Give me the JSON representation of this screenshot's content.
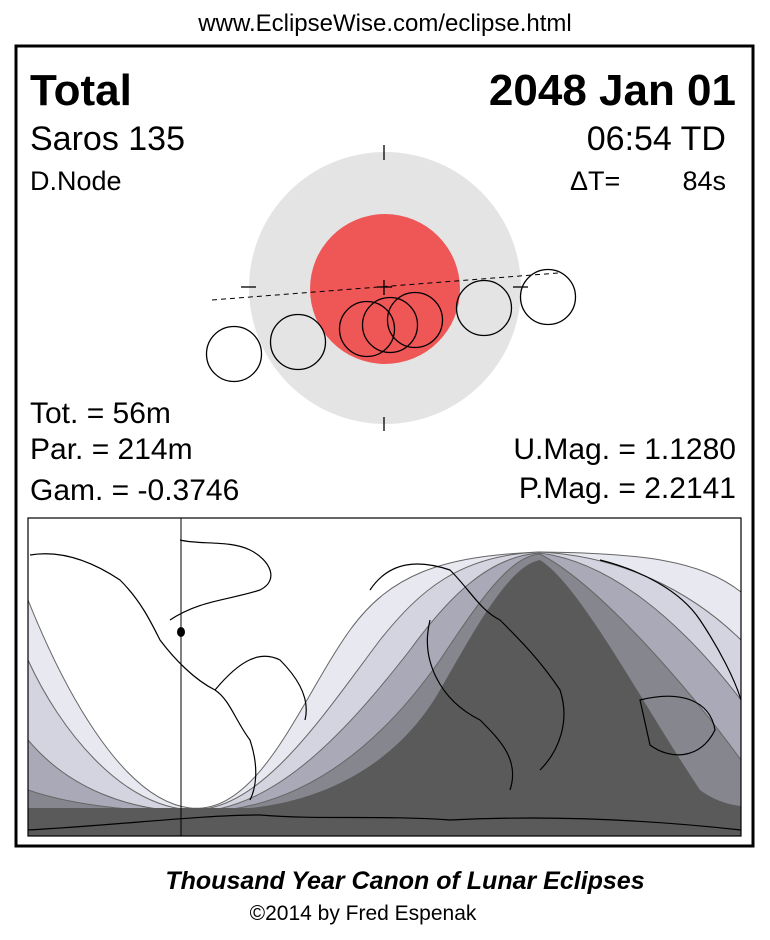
{
  "header": {
    "url": "www.EclipseWise.com/eclipse.html"
  },
  "eclipse": {
    "type": "Total",
    "date": "2048 Jan 01",
    "saros": "Saros 135",
    "time": "06:54 TD",
    "node": "D.Node",
    "delta_t_label": "ΔT=",
    "delta_t_value": "84s",
    "totality": "Tot. =  56m",
    "partial": "Par. = 214m",
    "gamma": "Gam. = -0.3746",
    "umbral_mag": "U.Mag. = 1.1280",
    "penumbral_mag": "P.Mag. = 2.2141"
  },
  "colors": {
    "penumbra": "#e4e4e4",
    "umbra": "#ef5656",
    "map_band_1": "#e8e8f0",
    "map_band_2": "#d4d4e0",
    "map_band_3": "#a9a9b8",
    "map_band_4": "#86868f",
    "map_total": "#5a5a5a"
  },
  "footer": {
    "title": "Thousand Year Canon of Lunar Eclipses",
    "copyright": "©2014 by Fred Espenak"
  }
}
